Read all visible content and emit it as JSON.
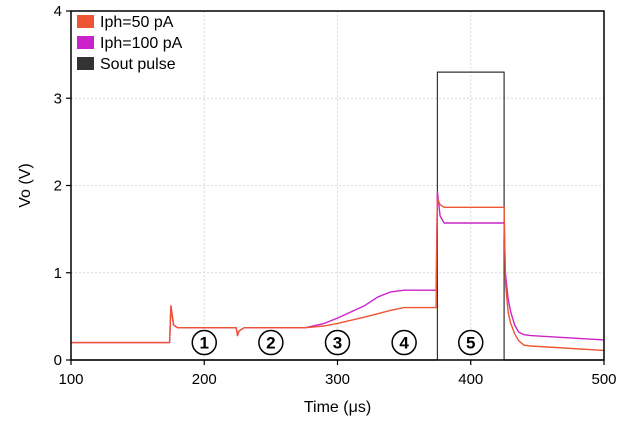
{
  "chart_data": {
    "type": "line",
    "title": "",
    "xlabel": "Time (μs)",
    "ylabel": "Vo (V)",
    "xlim": [
      100,
      500
    ],
    "ylim": [
      0,
      4
    ],
    "x_ticks": [
      100,
      200,
      300,
      400,
      500
    ],
    "y_ticks": [
      0,
      1,
      2,
      3,
      4
    ],
    "grid": true,
    "legend_position": "top-left",
    "series": [
      {
        "name": "Iph=50 pA",
        "color": "#ee5533",
        "points": [
          [
            100,
            0.2
          ],
          [
            174,
            0.2
          ],
          [
            175,
            0.62
          ],
          [
            177,
            0.4
          ],
          [
            180,
            0.37
          ],
          [
            224,
            0.37
          ],
          [
            225,
            0.28
          ],
          [
            226,
            0.33
          ],
          [
            230,
            0.37
          ],
          [
            276,
            0.37
          ],
          [
            290,
            0.39
          ],
          [
            300,
            0.42
          ],
          [
            320,
            0.49
          ],
          [
            330,
            0.53
          ],
          [
            340,
            0.57
          ],
          [
            350,
            0.6
          ],
          [
            373,
            0.6
          ],
          [
            374,
            0.6
          ],
          [
            375,
            1.85
          ],
          [
            377,
            1.78
          ],
          [
            380,
            1.75
          ],
          [
            424,
            1.75
          ],
          [
            425,
            1.75
          ],
          [
            426,
            0.9
          ],
          [
            428,
            0.55
          ],
          [
            430,
            0.42
          ],
          [
            433,
            0.3
          ],
          [
            436,
            0.22
          ],
          [
            440,
            0.17
          ],
          [
            445,
            0.16
          ],
          [
            500,
            0.11
          ]
        ]
      },
      {
        "name": "Iph=100 pA",
        "color": "#cc22cc",
        "points": [
          [
            100,
            0.2
          ],
          [
            174,
            0.2
          ],
          [
            175,
            0.62
          ],
          [
            177,
            0.4
          ],
          [
            180,
            0.37
          ],
          [
            224,
            0.37
          ],
          [
            225,
            0.28
          ],
          [
            226,
            0.33
          ],
          [
            230,
            0.37
          ],
          [
            276,
            0.37
          ],
          [
            290,
            0.42
          ],
          [
            300,
            0.48
          ],
          [
            310,
            0.55
          ],
          [
            320,
            0.62
          ],
          [
            330,
            0.72
          ],
          [
            340,
            0.78
          ],
          [
            350,
            0.8
          ],
          [
            373,
            0.8
          ],
          [
            374,
            0.8
          ],
          [
            375,
            1.93
          ],
          [
            377,
            1.65
          ],
          [
            380,
            1.57
          ],
          [
            424,
            1.57
          ],
          [
            425,
            1.57
          ],
          [
            426,
            1.0
          ],
          [
            428,
            0.7
          ],
          [
            430,
            0.55
          ],
          [
            433,
            0.4
          ],
          [
            436,
            0.32
          ],
          [
            440,
            0.29
          ],
          [
            445,
            0.28
          ],
          [
            500,
            0.23
          ]
        ]
      },
      {
        "name": "Sout pulse",
        "color": "#333333",
        "points": [
          [
            100,
            0.0
          ],
          [
            375,
            0.0
          ],
          [
            375,
            3.3
          ],
          [
            425,
            3.3
          ],
          [
            425,
            0.0
          ],
          [
            500,
            0.0
          ]
        ]
      }
    ],
    "annotations": [
      {
        "label": "1",
        "x": 200,
        "y": 0.2
      },
      {
        "label": "2",
        "x": 250,
        "y": 0.2
      },
      {
        "label": "3",
        "x": 300,
        "y": 0.2
      },
      {
        "label": "4",
        "x": 350,
        "y": 0.2
      },
      {
        "label": "5",
        "x": 400,
        "y": 0.2
      }
    ]
  }
}
